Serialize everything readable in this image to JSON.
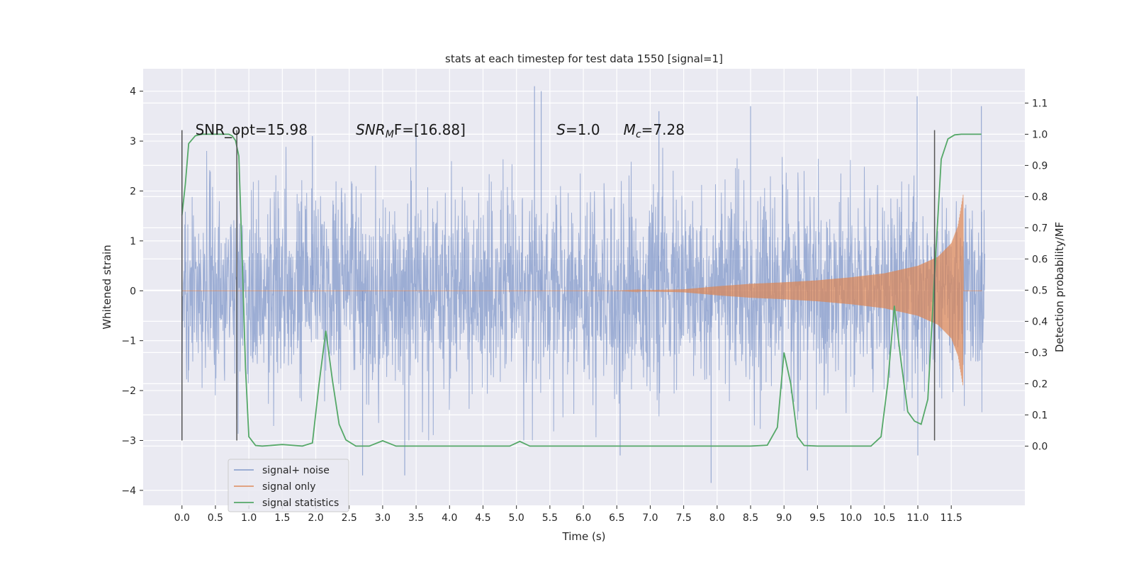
{
  "chart_data": {
    "type": "line",
    "title": "stats at each timestep for test data 1550 [signal=1]",
    "xlabel": "Time (s)",
    "ylabel": "Whitened strain",
    "y2label": "Detection probability/MF",
    "xlim": [
      -0.58,
      12.6
    ],
    "ylim": [
      -4.3,
      4.45
    ],
    "y2lim": [
      -0.19,
      1.21
    ],
    "xticks": [
      0.0,
      0.5,
      1.0,
      1.5,
      2.0,
      2.5,
      3.0,
      3.5,
      4.0,
      4.5,
      5.0,
      5.5,
      6.0,
      6.5,
      7.0,
      7.5,
      8.0,
      8.5,
      9.0,
      9.5,
      10.0,
      10.5,
      11.0,
      11.5
    ],
    "xtick_labels": [
      "0.0",
      "0.5",
      "1.0",
      "1.5",
      "2.0",
      "2.5",
      "3.0",
      "3.5",
      "4.0",
      "4.5",
      "5.0",
      "5.5",
      "6.0",
      "6.5",
      "7.0",
      "7.5",
      "8.0",
      "8.5",
      "9.0",
      "9.5",
      "10.0",
      "10.5",
      "11.0",
      "11.5"
    ],
    "yticks": [
      -4,
      -3,
      -2,
      -1,
      0,
      1,
      2,
      3,
      4
    ],
    "ytick_labels": [
      "−4",
      "−3",
      "−2",
      "−1",
      "0",
      "1",
      "2",
      "3",
      "4"
    ],
    "y2ticks": [
      0.0,
      0.1,
      0.2,
      0.3,
      0.4,
      0.5,
      0.6,
      0.7,
      0.8,
      0.9,
      1.0,
      1.1
    ],
    "y2tick_labels": [
      "0.0",
      "0.1",
      "0.2",
      "0.3",
      "0.4",
      "0.5",
      "0.6",
      "0.7",
      "0.8",
      "0.9",
      "1.0",
      "1.1"
    ],
    "grid": true,
    "legend_position": "bottom-left",
    "annotations": [
      {
        "text": "SNR_opt=15.98",
        "x": 0.2,
        "y": 3.23
      },
      {
        "text": "SNR_MF=[16.88]",
        "x": 2.6,
        "y": 3.23
      },
      {
        "text": "S=1.0",
        "x": 5.6,
        "y": 3.23
      },
      {
        "text": "M_c=7.28",
        "x": 6.6,
        "y": 3.23
      }
    ],
    "vertical_lines": [
      0.0,
      0.82,
      11.25
    ],
    "vertical_line_range": [
      -3.0,
      3.22
    ],
    "series": [
      {
        "name": "signal+ noise",
        "color": "#7b93c7",
        "axis": "left",
        "kind": "noise",
        "x_range": [
          0.0,
          12.0
        ],
        "typical_envelope": [
          -2.5,
          2.5
        ],
        "peaks": [
          {
            "x": 5.27,
            "y": 4.1
          },
          {
            "x": 5.37,
            "y": 4.0
          },
          {
            "x": 7.13,
            "y": 3.6
          },
          {
            "x": 10.99,
            "y": 3.9
          },
          {
            "x": 11.95,
            "y": 3.7
          },
          {
            "x": 8.5,
            "y": 3.7
          },
          {
            "x": 1.95,
            "y": 3.1
          },
          {
            "x": 3.5,
            "y": 3.2
          },
          {
            "x": 2.7,
            "y": -3.7
          },
          {
            "x": 3.33,
            "y": -3.7
          },
          {
            "x": 7.91,
            "y": -3.85
          },
          {
            "x": 9.35,
            "y": -3.6
          },
          {
            "x": 6.55,
            "y": -3.3
          },
          {
            "x": 11.0,
            "y": -3.3
          }
        ]
      },
      {
        "name": "signal only",
        "color": "#dd8452",
        "axis": "left",
        "kind": "chirp",
        "x_range": [
          0.0,
          11.96
        ],
        "envelope": [
          {
            "x": 7.5,
            "y": 0.03
          },
          {
            "x": 8.0,
            "y": 0.09
          },
          {
            "x": 8.5,
            "y": 0.14
          },
          {
            "x": 9.0,
            "y": 0.17
          },
          {
            "x": 9.5,
            "y": 0.21
          },
          {
            "x": 10.0,
            "y": 0.27
          },
          {
            "x": 10.5,
            "y": 0.35
          },
          {
            "x": 11.0,
            "y": 0.5
          },
          {
            "x": 11.3,
            "y": 0.68
          },
          {
            "x": 11.5,
            "y": 0.95
          },
          {
            "x": 11.6,
            "y": 1.3
          },
          {
            "x": 11.68,
            "y": 1.95
          }
        ]
      },
      {
        "name": "signal statistics",
        "color": "#55a868",
        "axis": "right",
        "x": [
          0.0,
          0.05,
          0.1,
          0.2,
          0.3,
          0.5,
          0.7,
          0.75,
          0.8,
          0.85,
          0.9,
          0.95,
          1.0,
          1.1,
          1.2,
          1.5,
          1.8,
          1.95,
          2.05,
          2.15,
          2.25,
          2.35,
          2.45,
          2.6,
          2.8,
          3.0,
          3.2,
          3.5,
          4.0,
          4.5,
          4.9,
          5.05,
          5.2,
          5.5,
          6.0,
          6.5,
          7.0,
          7.5,
          7.8,
          8.0,
          8.5,
          8.75,
          8.9,
          9.0,
          9.1,
          9.2,
          9.3,
          9.5,
          10.0,
          10.3,
          10.45,
          10.55,
          10.65,
          10.75,
          10.85,
          10.95,
          11.05,
          11.15,
          11.25,
          11.35,
          11.45,
          11.55,
          11.65,
          11.8,
          11.95
        ],
        "y": [
          0.74,
          0.84,
          0.97,
          0.995,
          1.0,
          1.0,
          1.0,
          0.995,
          0.98,
          0.93,
          0.6,
          0.25,
          0.03,
          0.002,
          0.0,
          0.005,
          0.0,
          0.01,
          0.2,
          0.37,
          0.21,
          0.07,
          0.02,
          0.0,
          0.0,
          0.017,
          0.0,
          0.0,
          0.0,
          0.0,
          0.0,
          0.015,
          0.0,
          0.0,
          0.0,
          0.0,
          0.0,
          0.0,
          0.0,
          0.0,
          0.0,
          0.003,
          0.06,
          0.3,
          0.2,
          0.03,
          0.002,
          0.0,
          0.0,
          0.0,
          0.03,
          0.2,
          0.45,
          0.27,
          0.11,
          0.08,
          0.07,
          0.15,
          0.55,
          0.92,
          0.985,
          0.998,
          1.0,
          1.0,
          1.0
        ]
      }
    ]
  }
}
